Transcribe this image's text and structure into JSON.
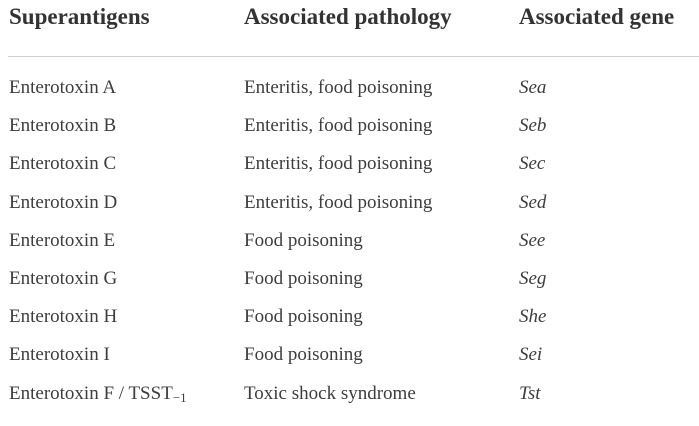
{
  "table": {
    "headers": [
      "Superantigens",
      "Associated pathology",
      "Associated gene"
    ],
    "rows": [
      {
        "superantigen": "Enterotoxin A",
        "pathology": "Enteritis, food poisoning",
        "gene": "Sea"
      },
      {
        "superantigen": "Enterotoxin B",
        "pathology": "Enteritis, food poisoning",
        "gene": "Seb"
      },
      {
        "superantigen": "Enterotoxin C",
        "pathology": "Enteritis, food poisoning",
        "gene": "Sec"
      },
      {
        "superantigen": "Enterotoxin D",
        "pathology": "Enteritis, food poisoning",
        "gene": "Sed"
      },
      {
        "superantigen": "Enterotoxin E",
        "pathology": "Food poisoning",
        "gene": "See"
      },
      {
        "superantigen": "Enterotoxin G",
        "pathology": "Food poisoning",
        "gene": "Seg"
      },
      {
        "superantigen": "Enterotoxin H",
        "pathology": "Food poisoning",
        "gene": "She"
      },
      {
        "superantigen": "Enterotoxin I",
        "pathology": "Food poisoning",
        "gene": "Sei"
      },
      {
        "superantigen": "Enterotoxin F / TSST",
        "superantigen_subscript": "−1",
        "pathology": "Toxic shock syndrome",
        "gene": "Tst"
      }
    ]
  }
}
